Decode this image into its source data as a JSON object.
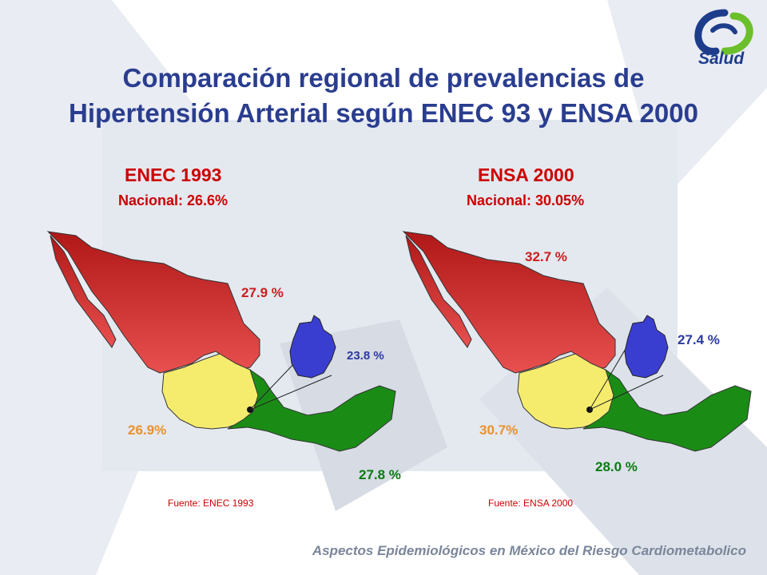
{
  "slide": {
    "title_line1": "Comparación regional de prevalencias  de",
    "title_line2": "Hipertensión Arterial  según ENEC 93 y ENSA 2000",
    "footer": "Aspectos Epidemiológicos en México del Riesgo Cardiometabolico",
    "logo_text": "Salud"
  },
  "colors": {
    "north_red": "#d62a2a",
    "center_yellow": "#f5ec6e",
    "south_green": "#1a8c16",
    "capital_blue": "#3a3ed0",
    "title_blue": "#2a3d8f"
  },
  "maps": [
    {
      "survey": "ENEC 1993",
      "national": "Nacional: 26.6%",
      "source": "Fuente: ENEC 1993",
      "regions": {
        "north": "27.9 %",
        "capital": "23.8 %",
        "center": "26.9%",
        "south": "27.8 %"
      }
    },
    {
      "survey": "ENSA 2000",
      "national": "Nacional: 30.05%",
      "source": "Fuente: ENSA 2000",
      "regions": {
        "north": "32.7 %",
        "capital": "27.4 %",
        "center": "30.7%",
        "south": "28.0 %"
      }
    }
  ]
}
